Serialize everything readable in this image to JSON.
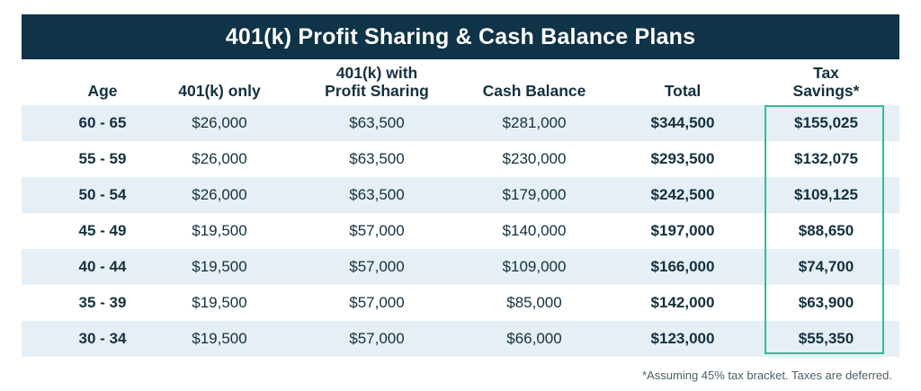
{
  "title": "401(k) Profit Sharing & Cash Balance Plans",
  "headers": {
    "age": "Age",
    "k401_only": "401(k) only",
    "k401_ps_line1": "401(k) with",
    "k401_ps_line2": "Profit Sharing",
    "cash_balance": "Cash Balance",
    "total": "Total",
    "tax_line1": "Tax",
    "tax_line2": "Savings*"
  },
  "rows": [
    {
      "age": "60 - 65",
      "k401_only": "$26,000",
      "k401_ps": "$63,500",
      "cash_balance": "$281,000",
      "total": "$344,500",
      "tax_savings": "$155,025"
    },
    {
      "age": "55 - 59",
      "k401_only": "$26,000",
      "k401_ps": "$63,500",
      "cash_balance": "$230,000",
      "total": "$293,500",
      "tax_savings": "$132,075"
    },
    {
      "age": "50 - 54",
      "k401_only": "$26,000",
      "k401_ps": "$63,500",
      "cash_balance": "$179,000",
      "total": "$242,500",
      "tax_savings": "$109,125"
    },
    {
      "age": "45 - 49",
      "k401_only": "$19,500",
      "k401_ps": "$57,000",
      "cash_balance": "$140,000",
      "total": "$197,000",
      "tax_savings": "$88,650"
    },
    {
      "age": "40 - 44",
      "k401_only": "$19,500",
      "k401_ps": "$57,000",
      "cash_balance": "$109,000",
      "total": "$166,000",
      "tax_savings": "$74,700"
    },
    {
      "age": "35 - 39",
      "k401_only": "$19,500",
      "k401_ps": "$57,000",
      "cash_balance": "$85,000",
      "total": "$142,000",
      "tax_savings": "$63,900"
    },
    {
      "age": "30 - 34",
      "k401_only": "$19,500",
      "k401_ps": "$57,000",
      "cash_balance": "$66,000",
      "total": "$123,000",
      "tax_savings": "$55,350"
    }
  ],
  "footnote": "*Assuming 45% tax bracket. Taxes are deferred.",
  "colors": {
    "title_background": "#0f3347",
    "title_text": "#ffffff",
    "row_shade": "#e6eff5",
    "highlight_border": "#2bbf9a",
    "text": "#13313f"
  }
}
